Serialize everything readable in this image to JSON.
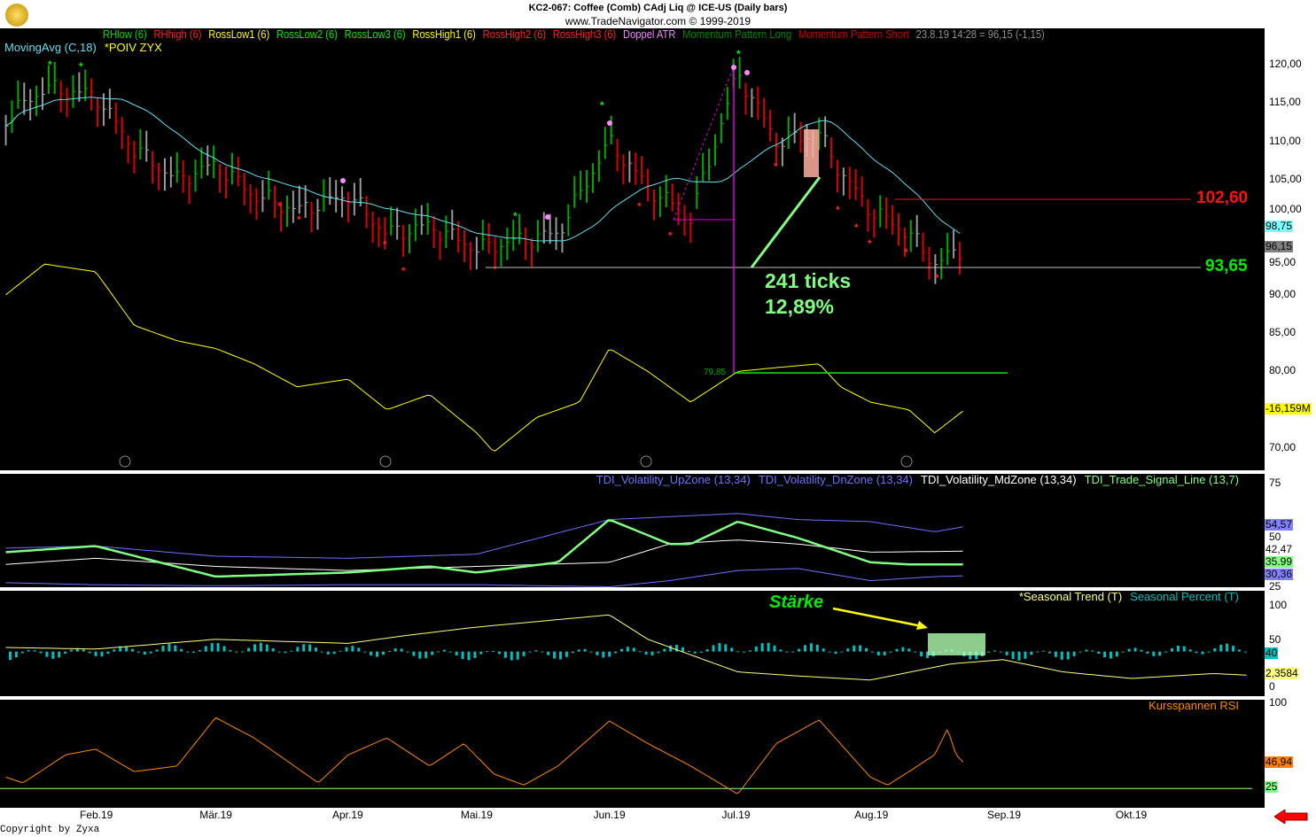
{
  "header": {
    "title": "KC2-067:  Coffee (Comb) CAdj Liq @ ICE-US  (Daily bars)",
    "subtitle": "www.TradeNavigator.com © 1999-2019"
  },
  "legend_main": [
    {
      "label": "RHlow (6)",
      "color": "#00dd00"
    },
    {
      "label": "RHhigh (6)",
      "color": "#ff2020"
    },
    {
      "label": "RossLow1 (6)",
      "color": "#ffff00"
    },
    {
      "label": "RossLow2 (6)",
      "color": "#00ee00"
    },
    {
      "label": "RossLow3 (6)",
      "color": "#00ee00"
    },
    {
      "label": "RossHigh1 (6)",
      "color": "#ffff00"
    },
    {
      "label": "RossHigh2 (6)",
      "color": "#ff2020"
    },
    {
      "label": "RossHigh3 (6)",
      "color": "#ff2020"
    },
    {
      "label": "Doppel ATR",
      "color": "#ee88ff"
    },
    {
      "label": "Momentum Pattern Long",
      "color": "#008800"
    },
    {
      "label": "Momentum Pattern Short",
      "color": "#cc0000"
    },
    {
      "label": "23.8.19 14:28 = 96,15 (-1,15)",
      "color": "#909090"
    }
  ],
  "legend_main2": [
    {
      "label": "MovingAvg (C,18)",
      "color": "#66ddee"
    },
    {
      "label": "*POIV ZYX",
      "color": "#ffff00"
    }
  ],
  "annotations": {
    "ticks": "241 ticks",
    "percent": "12,89%",
    "resistance": "102,60",
    "support": "93,65",
    "low_label": "79,85",
    "strength": "Stärke"
  },
  "copyright": "Copyright by Zyxa",
  "colors": {
    "background": "#000000",
    "up": "#00aa00",
    "down": "#dd0000",
    "neutral": "#999999",
    "ma": "#66ddee",
    "poiv": "#ffff00"
  },
  "chart_data": [
    {
      "type": "bar",
      "name": "price",
      "yticks": [
        "120,00",
        "115,00",
        "110,00",
        "105,00",
        "100,00",
        "95,00",
        "90,00",
        "85,00",
        "80,00",
        "70,00"
      ],
      "ylim": [
        68,
        123
      ],
      "last_tags": {
        "ma": "98,75",
        "close": "96,15",
        "poiv": "-16,159M"
      },
      "close_keypoints": [
        [
          "2019-01-11",
          113
        ],
        [
          "2019-01-20",
          117
        ],
        [
          "2019-02-01",
          116
        ],
        [
          "2019-02-10",
          109
        ],
        [
          "2019-02-20",
          105
        ],
        [
          "2019-03-01",
          107
        ],
        [
          "2019-03-10",
          103
        ],
        [
          "2019-03-20",
          101
        ],
        [
          "2019-04-01",
          103
        ],
        [
          "2019-04-10",
          98
        ],
        [
          "2019-04-20",
          99
        ],
        [
          "2019-05-01",
          96
        ],
        [
          "2019-05-10",
          97
        ],
        [
          "2019-05-20",
          98
        ],
        [
          "2019-06-01",
          110
        ],
        [
          "2019-06-10",
          104
        ],
        [
          "2019-06-20",
          100
        ],
        [
          "2019-07-01",
          119
        ],
        [
          "2019-07-10",
          110
        ],
        [
          "2019-07-20",
          111
        ],
        [
          "2019-07-25",
          106
        ],
        [
          "2019-08-01",
          101
        ],
        [
          "2019-08-10",
          98
        ],
        [
          "2019-08-16",
          94
        ],
        [
          "2019-08-23",
          96.15
        ]
      ],
      "poiv_keypoints": [
        [
          "2019-01-11",
          90
        ],
        [
          "2019-01-20",
          94
        ],
        [
          "2019-02-01",
          93
        ],
        [
          "2019-02-10",
          86
        ],
        [
          "2019-02-20",
          84
        ],
        [
          "2019-03-01",
          83
        ],
        [
          "2019-03-10",
          81
        ],
        [
          "2019-03-20",
          78
        ],
        [
          "2019-04-01",
          79
        ],
        [
          "2019-04-10",
          75
        ],
        [
          "2019-04-20",
          77
        ],
        [
          "2019-05-01",
          72
        ],
        [
          "2019-05-05",
          69.5
        ],
        [
          "2019-05-15",
          74
        ],
        [
          "2019-05-25",
          76
        ],
        [
          "2019-06-01",
          83
        ],
        [
          "2019-06-10",
          80
        ],
        [
          "2019-06-20",
          76
        ],
        [
          "2019-07-01",
          80
        ],
        [
          "2019-07-10",
          80.5
        ],
        [
          "2019-07-20",
          81
        ],
        [
          "2019-07-25",
          78
        ],
        [
          "2019-08-01",
          76
        ],
        [
          "2019-08-10",
          75
        ],
        [
          "2019-08-16",
          72
        ],
        [
          "2019-08-23",
          75
        ]
      ]
    },
    {
      "type": "line",
      "name": "TDI",
      "yticks": [
        "75",
        "50",
        "25"
      ],
      "ylim": [
        22,
        78
      ],
      "last_tags": {
        "up": "54,57",
        "md": "42,47",
        "signal": "35.99",
        "dn": "30,36"
      },
      "series": [
        {
          "name": "TDI_Volatility_UpZone (13,34)",
          "color": "#7070ff",
          "points": [
            [
              "2019-01-11",
              44
            ],
            [
              "2019-02-01",
              45
            ],
            [
              "2019-03-01",
              40
            ],
            [
              "2019-04-01",
              39
            ],
            [
              "2019-05-01",
              41
            ],
            [
              "2019-06-01",
              58
            ],
            [
              "2019-07-01",
              61
            ],
            [
              "2019-07-15",
              58
            ],
            [
              "2019-08-01",
              57
            ],
            [
              "2019-08-16",
              52
            ],
            [
              "2019-08-23",
              54.57
            ]
          ]
        },
        {
          "name": "TDI_Volatility_DnZone (13,34)",
          "color": "#7070ff",
          "points": [
            [
              "2019-01-11",
              27
            ],
            [
              "2019-02-01",
              26
            ],
            [
              "2019-03-01",
              25.5
            ],
            [
              "2019-04-01",
              26
            ],
            [
              "2019-05-01",
              26
            ],
            [
              "2019-06-01",
              25
            ],
            [
              "2019-06-15",
              28
            ],
            [
              "2019-07-01",
              33
            ],
            [
              "2019-07-15",
              34
            ],
            [
              "2019-08-01",
              28
            ],
            [
              "2019-08-16",
              30
            ],
            [
              "2019-08-23",
              30.36
            ]
          ]
        },
        {
          "name": "TDI_Volatility_MdZone (13,34)",
          "color": "#ffffff",
          "points": [
            [
              "2019-01-11",
              36
            ],
            [
              "2019-02-01",
              39
            ],
            [
              "2019-03-01",
              35
            ],
            [
              "2019-04-01",
              33
            ],
            [
              "2019-05-01",
              35
            ],
            [
              "2019-06-01",
              37
            ],
            [
              "2019-06-15",
              46
            ],
            [
              "2019-07-01",
              48
            ],
            [
              "2019-07-15",
              46
            ],
            [
              "2019-08-01",
              42
            ],
            [
              "2019-08-23",
              42.47
            ]
          ]
        },
        {
          "name": "TDI_Trade_Signal_Line (13,7)",
          "color": "#80ff80",
          "points": [
            [
              "2019-01-11",
              42
            ],
            [
              "2019-02-01",
              45
            ],
            [
              "2019-03-01",
              30
            ],
            [
              "2019-04-01",
              32
            ],
            [
              "2019-04-20",
              35
            ],
            [
              "2019-05-01",
              32
            ],
            [
              "2019-05-20",
              37
            ],
            [
              "2019-06-01",
              58
            ],
            [
              "2019-06-15",
              46
            ],
            [
              "2019-06-20",
              46
            ],
            [
              "2019-07-01",
              57
            ],
            [
              "2019-07-15",
              49
            ],
            [
              "2019-08-01",
              37
            ],
            [
              "2019-08-10",
              36
            ],
            [
              "2019-08-23",
              35.99
            ]
          ]
        }
      ]
    },
    {
      "type": "bar",
      "name": "Seasonal",
      "yticks": [
        "100",
        "50",
        "0"
      ],
      "ylim": [
        0,
        100
      ],
      "last_tags": {
        "percent": "40",
        "trend": "2,3584"
      },
      "series": [
        {
          "name": "*Seasonal Trend (T)",
          "color": "#ffff80",
          "points": [
            [
              "2019-01-11",
              50
            ],
            [
              "2019-02-01",
              48
            ],
            [
              "2019-03-01",
              60
            ],
            [
              "2019-04-01",
              55
            ],
            [
              "2019-04-15",
              65
            ],
            [
              "2019-05-01",
              75
            ],
            [
              "2019-06-01",
              90
            ],
            [
              "2019-06-10",
              60
            ],
            [
              "2019-07-01",
              20
            ],
            [
              "2019-07-15",
              15
            ],
            [
              "2019-08-01",
              10
            ],
            [
              "2019-08-20",
              30
            ],
            [
              "2019-09-01",
              35
            ],
            [
              "2019-09-15",
              20
            ],
            [
              "2019-10-01",
              12
            ],
            [
              "2019-10-20",
              18
            ],
            [
              "2019-10-28",
              16
            ]
          ]
        },
        {
          "name": "Seasonal Percent (T)",
          "color": "#00c0c0",
          "baseline": 45,
          "last": 40
        }
      ]
    },
    {
      "type": "line",
      "name": "RSI",
      "yticks": [
        "100",
        "25"
      ],
      "ylim": [
        15,
        100
      ],
      "level": 25,
      "last_tags": {
        "rsi": "46,94",
        "level": "25"
      },
      "series": [
        {
          "name": "Kursspannen RSI",
          "color": "#ff8800",
          "points": [
            [
              "2019-01-11",
              35
            ],
            [
              "2019-01-15",
              30
            ],
            [
              "2019-01-25",
              55
            ],
            [
              "2019-02-01",
              60
            ],
            [
              "2019-02-10",
              40
            ],
            [
              "2019-02-20",
              45
            ],
            [
              "2019-03-01",
              88
            ],
            [
              "2019-03-10",
              70
            ],
            [
              "2019-03-25",
              30
            ],
            [
              "2019-04-01",
              55
            ],
            [
              "2019-04-10",
              70
            ],
            [
              "2019-04-20",
              45
            ],
            [
              "2019-04-28",
              65
            ],
            [
              "2019-05-05",
              38
            ],
            [
              "2019-05-12",
              28
            ],
            [
              "2019-05-20",
              45
            ],
            [
              "2019-06-01",
              85
            ],
            [
              "2019-06-10",
              65
            ],
            [
              "2019-06-20",
              45
            ],
            [
              "2019-07-01",
              20
            ],
            [
              "2019-07-10",
              65
            ],
            [
              "2019-07-20",
              86
            ],
            [
              "2019-08-01",
              35
            ],
            [
              "2019-08-05",
              28
            ],
            [
              "2019-08-10",
              40
            ],
            [
              "2019-08-16",
              55
            ],
            [
              "2019-08-19",
              78
            ],
            [
              "2019-08-21",
              55
            ],
            [
              "2019-08-23",
              46.94
            ]
          ]
        }
      ]
    }
  ],
  "xaxis": {
    "labels": [
      [
        "2019-02-01",
        "Feb.19"
      ],
      [
        "2019-03-01",
        "Mär.19"
      ],
      [
        "2019-04-01",
        "Apr.19"
      ],
      [
        "2019-05-01",
        "Mai.19"
      ],
      [
        "2019-06-01",
        "Jun.19"
      ],
      [
        "2019-07-01",
        "Jul.19"
      ],
      [
        "2019-08-01",
        "Aug.19"
      ],
      [
        "2019-09-01",
        "Sep.19"
      ],
      [
        "2019-10-01",
        "Okt.19"
      ]
    ]
  }
}
